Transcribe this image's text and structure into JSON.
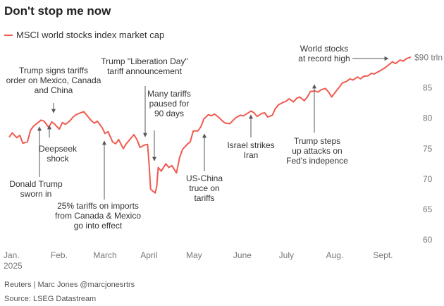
{
  "title": "Don't stop me now",
  "footer": {
    "credit": "Reuters | Marc Jones @marcjonesrtrs",
    "source": "Source: LSEG Datastream"
  },
  "chart_data": {
    "type": "line",
    "series": [
      {
        "name": "MSCI world stocks index market cap",
        "color": "#f05a4f",
        "x": [
          "2025-01-01",
          "2025-01-03",
          "2025-01-06",
          "2025-01-08",
          "2025-01-10",
          "2025-01-13",
          "2025-01-15",
          "2025-01-17",
          "2025-01-20",
          "2025-01-22",
          "2025-01-24",
          "2025-01-27",
          "2025-01-29",
          "2025-01-31",
          "2025-02-03",
          "2025-02-05",
          "2025-02-07",
          "2025-02-10",
          "2025-02-12",
          "2025-02-14",
          "2025-02-17",
          "2025-02-19",
          "2025-02-21",
          "2025-02-24",
          "2025-02-26",
          "2025-02-28",
          "2025-03-03",
          "2025-03-05",
          "2025-03-07",
          "2025-03-10",
          "2025-03-12",
          "2025-03-14",
          "2025-03-17",
          "2025-03-19",
          "2025-03-21",
          "2025-03-24",
          "2025-03-26",
          "2025-03-28",
          "2025-03-31",
          "2025-04-02",
          "2025-04-03",
          "2025-04-04",
          "2025-04-07",
          "2025-04-08",
          "2025-04-09",
          "2025-04-11",
          "2025-04-14",
          "2025-04-16",
          "2025-04-18",
          "2025-04-21",
          "2025-04-23",
          "2025-04-25",
          "2025-04-28",
          "2025-04-30",
          "2025-05-02",
          "2025-05-05",
          "2025-05-07",
          "2025-05-09",
          "2025-05-12",
          "2025-05-14",
          "2025-05-16",
          "2025-05-19",
          "2025-05-21",
          "2025-05-23",
          "2025-05-26",
          "2025-05-28",
          "2025-05-30",
          "2025-06-02",
          "2025-06-04",
          "2025-06-06",
          "2025-06-09",
          "2025-06-11",
          "2025-06-13",
          "2025-06-16",
          "2025-06-18",
          "2025-06-20",
          "2025-06-23",
          "2025-06-25",
          "2025-06-27",
          "2025-06-30",
          "2025-07-02",
          "2025-07-04",
          "2025-07-07",
          "2025-07-09",
          "2025-07-11",
          "2025-07-14",
          "2025-07-16",
          "2025-07-18",
          "2025-07-21",
          "2025-07-23",
          "2025-07-25",
          "2025-07-28",
          "2025-07-30",
          "2025-08-01",
          "2025-08-04",
          "2025-08-06",
          "2025-08-08",
          "2025-08-11",
          "2025-08-13",
          "2025-08-15",
          "2025-08-18",
          "2025-08-20",
          "2025-08-22",
          "2025-08-25",
          "2025-08-27",
          "2025-08-29",
          "2025-09-01",
          "2025-09-03",
          "2025-09-05",
          "2025-09-08",
          "2025-09-10",
          "2025-09-12",
          "2025-09-15",
          "2025-09-17",
          "2025-09-19",
          "2025-09-22"
        ],
        "values": [
          76.9,
          77.6,
          76.8,
          77.2,
          75.9,
          76.1,
          78.0,
          78.7,
          79.3,
          79.7,
          79.5,
          78.5,
          79.4,
          79.0,
          78.2,
          79.3,
          79.0,
          79.6,
          80.2,
          80.6,
          80.9,
          81.1,
          80.5,
          79.6,
          79.2,
          79.5,
          78.5,
          77.5,
          77.8,
          76.1,
          75.8,
          76.5,
          75.0,
          75.8,
          76.4,
          77.3,
          76.5,
          75.2,
          75.6,
          75.7,
          72.4,
          68.3,
          67.7,
          68.8,
          71.9,
          71.3,
          72.5,
          71.9,
          72.2,
          71.0,
          73.5,
          74.9,
          75.7,
          76.1,
          77.9,
          77.9,
          78.6,
          79.9,
          80.6,
          80.4,
          80.7,
          80.1,
          79.6,
          79.2,
          79.1,
          79.6,
          80.1,
          80.5,
          80.4,
          80.7,
          81.2,
          80.9,
          80.3,
          80.8,
          80.9,
          80.2,
          80.5,
          81.6,
          82.2,
          82.6,
          82.8,
          83.2,
          82.7,
          83.3,
          83.5,
          82.9,
          83.5,
          84.4,
          84.5,
          84.3,
          84.7,
          84.9,
          84.3,
          83.5,
          84.5,
          85.1,
          85.8,
          86.1,
          86.5,
          86.3,
          86.8,
          86.5,
          86.9,
          87.0,
          87.4,
          87.3,
          87.7,
          88.0,
          88.3,
          88.9,
          89.3,
          89.0,
          89.6,
          89.4,
          89.8,
          90.1
        ]
      }
    ],
    "x_tick_labels": [
      "Jan.",
      "Feb.",
      "March",
      "April",
      "May",
      "June",
      "July",
      "Aug.",
      "Sept."
    ],
    "x_tick_dates": [
      "2025-01-01",
      "2025-02-01",
      "2025-03-01",
      "2025-04-01",
      "2025-05-01",
      "2025-06-01",
      "2025-07-01",
      "2025-08-01",
      "2025-09-01"
    ],
    "x_sublabel": "2025",
    "y_ticks": [
      60,
      65,
      70,
      75,
      80,
      85
    ],
    "y_tick_labels": [
      "60",
      "65",
      "70",
      "75",
      "80",
      "85"
    ],
    "y_top_label": "$90 trln",
    "y_top_value": 90,
    "ylim": [
      60,
      91
    ],
    "xlim": [
      "2025-01-01",
      "2025-09-23"
    ],
    "grid": false,
    "legend_position": "top-left",
    "annotations": [
      {
        "lines": [
          "Trump signs tariffs",
          "order on Mexico, Canada",
          "and China"
        ],
        "target": "2025-02-01"
      },
      {
        "lines": [
          "Deepseek",
          "shock"
        ],
        "target": "2025-01-27"
      },
      {
        "lines": [
          "Donald Trump",
          "sworn in"
        ],
        "target": "2025-01-20"
      },
      {
        "lines": [
          "25% tariffs on imports",
          "from Canada & Mexico",
          "go into effect"
        ],
        "target": "2025-03-04"
      },
      {
        "lines": [
          "Trump \"Liberation Day\"",
          "tariff announcement"
        ],
        "target": "2025-04-02"
      },
      {
        "lines": [
          "Many tariffs",
          "paused for",
          "90 days"
        ],
        "target": "2025-04-09"
      },
      {
        "lines": [
          "US-China",
          "truce on",
          "tariffs"
        ],
        "target": "2025-05-12"
      },
      {
        "lines": [
          "Israel strikes",
          "Iran"
        ],
        "target": "2025-06-13"
      },
      {
        "lines": [
          "Trump steps",
          "up attacks on",
          "Fed's indepence"
        ],
        "target": "2025-07-15"
      },
      {
        "lines": [
          "World stocks",
          "at record high"
        ],
        "target": "2025-09-22"
      }
    ]
  }
}
